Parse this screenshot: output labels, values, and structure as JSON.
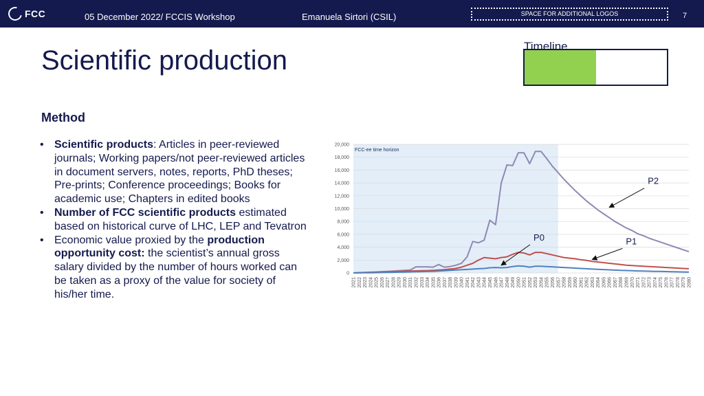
{
  "header": {
    "logo_text": "FCC",
    "date_event": "05 December 2022/ FCCIS Workshop",
    "author": "Emanuela Sirtori (CSIL)",
    "logos_placeholder": "SPACE FOR ADDITIONAL LOGOS",
    "page_number": "7"
  },
  "title": "Scientific production",
  "timeline": {
    "label": "Timeline",
    "progress_fraction": 0.5,
    "fill_color": "#92d050"
  },
  "method_heading": "Method",
  "bullets": [
    {
      "bold": "Scientific products",
      "text": ": Articles in peer-reviewed journals; Working papers/not peer-reviewed articles in document servers, notes, reports, PhD theses; Pre-prints; Conference proceedings; Books for academic use; Chapters in edited books"
    },
    {
      "bold": "Number of FCC scientific products",
      "text": " estimated based on historical curve of LHC, LEP and Tevatron"
    },
    {
      "text": "Economic value proxied by the ",
      "bold": "production opportunity cost:",
      "text2": " the scientist’s annual gross salary divided by the number of hours worked can be taken as a proxy of the value for society of his/her time."
    }
  ],
  "chart_data": {
    "type": "line",
    "horizon_label": "FCC-ee time horizon",
    "horizon_range": [
      2021,
      2057
    ],
    "xlim": [
      2021,
      2080
    ],
    "ylim": [
      0,
      20000
    ],
    "yticks": [
      0,
      2000,
      4000,
      6000,
      8000,
      10000,
      12000,
      14000,
      16000,
      18000,
      20000
    ],
    "ytick_labels": [
      "0",
      "2,000",
      "4,000",
      "6,000",
      "8,000",
      "10,000",
      "12,000",
      "14,000",
      "16,000",
      "18,000",
      "20,000"
    ],
    "x": [
      2021,
      2022,
      2023,
      2024,
      2025,
      2026,
      2027,
      2028,
      2029,
      2030,
      2031,
      2032,
      2033,
      2034,
      2035,
      2036,
      2037,
      2038,
      2039,
      2040,
      2041,
      2042,
      2043,
      2044,
      2045,
      2046,
      2047,
      2048,
      2049,
      2050,
      2051,
      2052,
      2053,
      2054,
      2055,
      2056,
      2057,
      2058,
      2059,
      2060,
      2061,
      2062,
      2063,
      2064,
      2065,
      2066,
      2067,
      2068,
      2069,
      2070,
      2071,
      2072,
      2073,
      2074,
      2075,
      2076,
      2077,
      2078,
      2079,
      2080
    ],
    "series": [
      {
        "name": "P2",
        "color": "#8e89b3",
        "values": [
          0,
          50,
          80,
          120,
          150,
          200,
          250,
          300,
          350,
          400,
          450,
          950,
          950,
          950,
          900,
          1300,
          900,
          1000,
          1200,
          1500,
          2500,
          4900,
          4700,
          5100,
          8200,
          7500,
          14000,
          16800,
          16700,
          18700,
          18700,
          17000,
          18900,
          18900,
          17800,
          16600,
          15600,
          14600,
          13700,
          12800,
          12000,
          11200,
          10500,
          9800,
          9200,
          8600,
          8000,
          7500,
          7000,
          6600,
          6100,
          5800,
          5400,
          5100,
          4800,
          4500,
          4200,
          3900,
          3600,
          3300
        ]
      },
      {
        "name": "P1",
        "color": "#c0504d",
        "values": [
          0,
          40,
          60,
          90,
          120,
          150,
          180,
          200,
          240,
          280,
          300,
          320,
          340,
          360,
          400,
          450,
          500,
          600,
          700,
          900,
          1200,
          1500,
          2000,
          2400,
          2300,
          2200,
          2400,
          2500,
          2900,
          3200,
          3100,
          2800,
          3200,
          3200,
          3000,
          2800,
          2600,
          2400,
          2300,
          2200,
          2050,
          1950,
          1800,
          1700,
          1600,
          1500,
          1400,
          1300,
          1200,
          1150,
          1100,
          1050,
          1000,
          950,
          900,
          850,
          800,
          750,
          700,
          650
        ]
      },
      {
        "name": "P0",
        "color": "#4f81bd",
        "values": [
          0,
          10,
          20,
          30,
          40,
          60,
          80,
          100,
          120,
          140,
          160,
          180,
          200,
          220,
          250,
          300,
          350,
          400,
          450,
          500,
          550,
          600,
          650,
          700,
          800,
          850,
          800,
          850,
          1000,
          1100,
          1050,
          900,
          1050,
          1050,
          1000,
          950,
          900,
          850,
          800,
          750,
          700,
          650,
          600,
          560,
          520,
          480,
          440,
          400,
          370,
          340,
          310,
          290,
          270,
          250,
          230,
          210,
          190,
          170,
          150,
          130
        ]
      }
    ],
    "annotations": [
      {
        "label": "P2",
        "year": 2066,
        "value": 10200
      },
      {
        "label": "P1",
        "year": 2063,
        "value": 2100
      },
      {
        "label": "P0",
        "year": 2047,
        "value": 1200
      }
    ]
  }
}
